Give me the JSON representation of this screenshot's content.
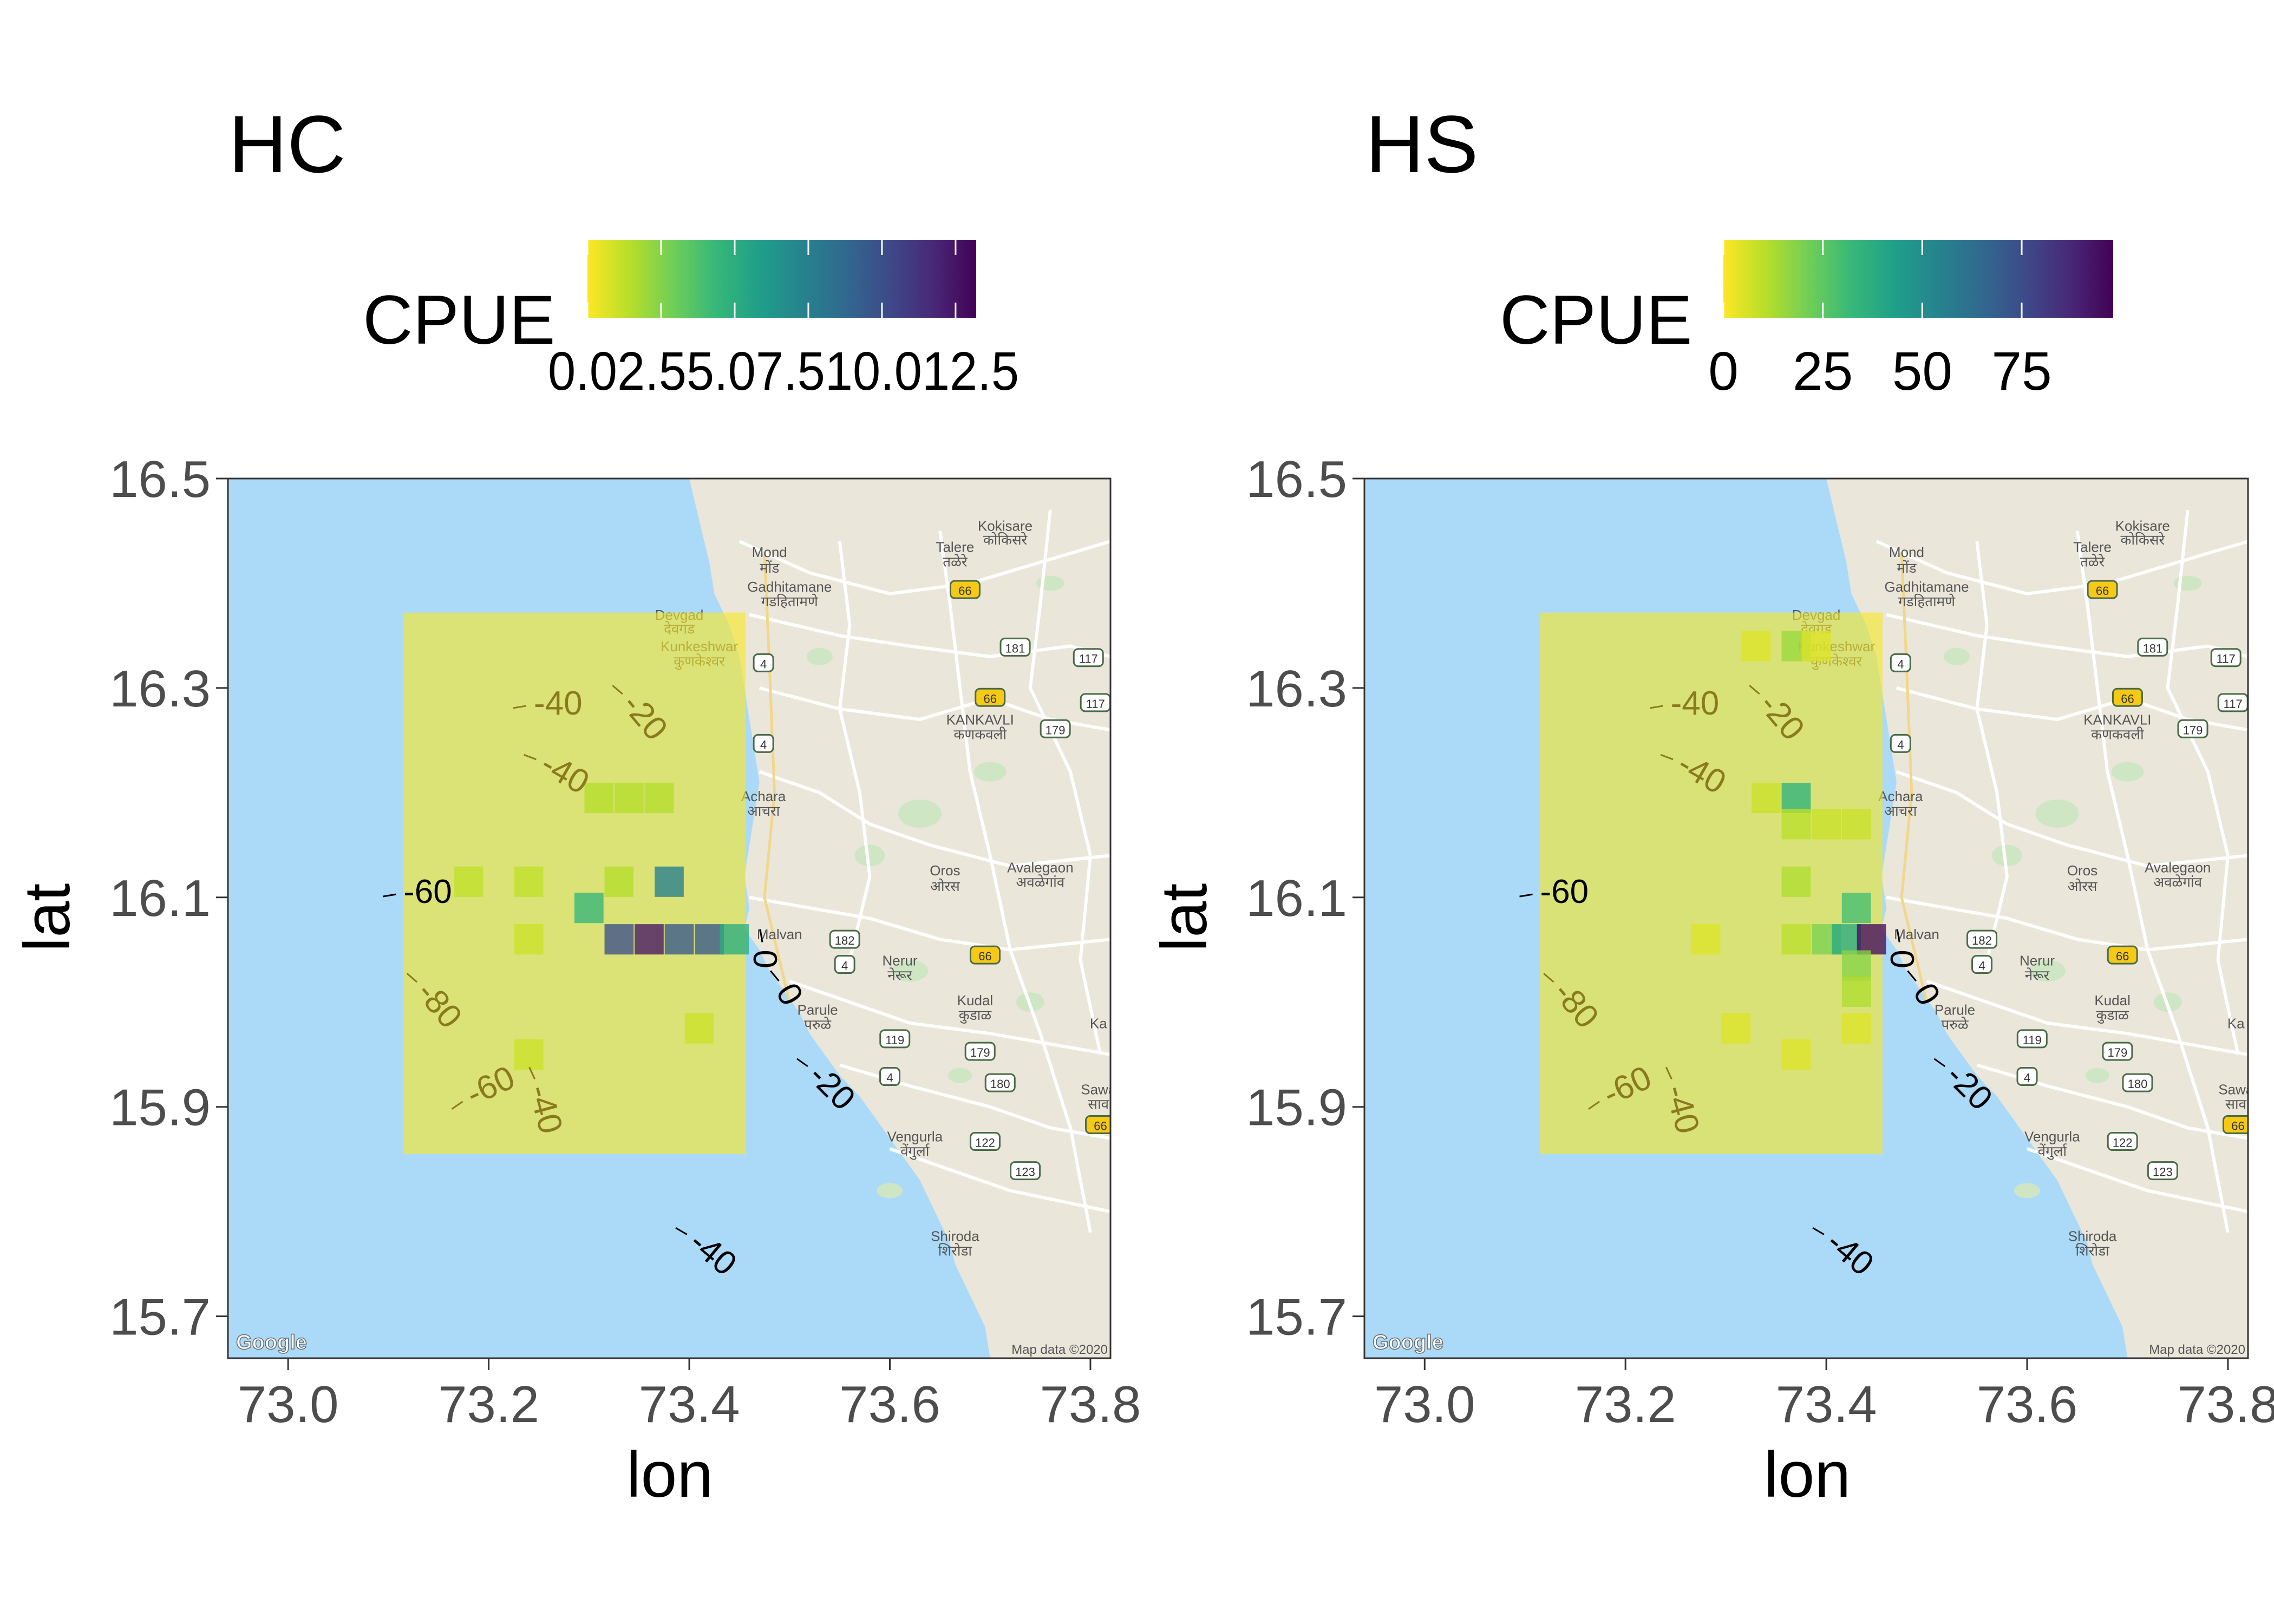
{
  "panels": [
    {
      "id": "hc",
      "title": "HC",
      "legend": {
        "title": "CPUE",
        "palette": [
          "#fde725",
          "#b5de2b",
          "#6ece58",
          "#35b779",
          "#1f9e89",
          "#26828e",
          "#31688e",
          "#3e4989",
          "#482878",
          "#440154"
        ],
        "labels": [
          "0.0",
          "2.5",
          "5.0",
          "7.5",
          "10.0",
          "12.5"
        ],
        "rendered_text": "0.02.55.07.510.012.5",
        "range": [
          0,
          13.2
        ]
      },
      "chart_data": {
        "type": "heatmap",
        "x_label": "lon",
        "y_label": "lat",
        "xlim": [
          72.94,
          73.82
        ],
        "ylim": [
          15.66,
          16.5
        ],
        "x_ticks": [
          "73.0",
          "73.2",
          "73.4",
          "73.6",
          "73.8"
        ],
        "y_ticks": [
          "15.7",
          "15.9",
          "16.1",
          "16.3",
          "16.5"
        ],
        "grid": false,
        "background_layer": "map tiles (Google)",
        "cell_size_deg": 0.029,
        "filled_region": {
          "lon": [
            73.115,
            73.456
          ],
          "lat": [
            15.855,
            16.372
          ],
          "base_value": 0.1
        },
        "cells": [
          {
            "lon": 73.31,
            "lat": 16.195,
            "v": 1.5
          },
          {
            "lon": 73.34,
            "lat": 16.195,
            "v": 1.5
          },
          {
            "lon": 73.37,
            "lat": 16.195,
            "v": 1.5
          },
          {
            "lon": 73.18,
            "lat": 16.115,
            "v": 1.2
          },
          {
            "lon": 73.24,
            "lat": 16.115,
            "v": 1.2
          },
          {
            "lon": 73.33,
            "lat": 16.115,
            "v": 1.5
          },
          {
            "lon": 73.38,
            "lat": 16.115,
            "v": 7.5
          },
          {
            "lon": 73.3,
            "lat": 16.09,
            "v": 4.5
          },
          {
            "lon": 73.24,
            "lat": 16.06,
            "v": 1.0
          },
          {
            "lon": 73.33,
            "lat": 16.06,
            "v": 10.0
          },
          {
            "lon": 73.36,
            "lat": 16.06,
            "v": 12.5
          },
          {
            "lon": 73.39,
            "lat": 16.06,
            "v": 9.5
          },
          {
            "lon": 73.42,
            "lat": 16.06,
            "v": 9.5
          },
          {
            "lon": 73.445,
            "lat": 16.06,
            "v": 5.0
          },
          {
            "lon": 73.41,
            "lat": 15.975,
            "v": 1.0
          },
          {
            "lon": 73.24,
            "lat": 15.95,
            "v": 1.0
          }
        ]
      }
    },
    {
      "id": "hs",
      "title": "HS",
      "legend": {
        "title": "CPUE",
        "palette": [
          "#fde725",
          "#b5de2b",
          "#6ece58",
          "#35b779",
          "#1f9e89",
          "#26828e",
          "#31688e",
          "#3e4989",
          "#482878",
          "#440154"
        ],
        "labels": [
          "0",
          "25",
          "50",
          "75"
        ],
        "rendered_text": "",
        "range": [
          0,
          98
        ]
      },
      "chart_data": {
        "type": "heatmap",
        "x_label": "lon",
        "y_label": "lat",
        "xlim": [
          72.94,
          73.82
        ],
        "ylim": [
          15.66,
          16.5
        ],
        "x_ticks": [
          "73.0",
          "73.2",
          "73.4",
          "73.6",
          "73.8"
        ],
        "y_ticks": [
          "15.7",
          "15.9",
          "16.1",
          "16.3",
          "16.5"
        ],
        "grid": false,
        "background_layer": "map tiles (Google)",
        "cell_size_deg": 0.029,
        "filled_region": {
          "lon": [
            73.115,
            73.456
          ],
          "lat": [
            15.855,
            16.372
          ],
          "base_value": 1
        },
        "cells": [
          {
            "lon": 73.33,
            "lat": 16.34,
            "v": 5
          },
          {
            "lon": 73.37,
            "lat": 16.34,
            "v": 15
          },
          {
            "lon": 73.39,
            "lat": 16.34,
            "v": 5
          },
          {
            "lon": 73.37,
            "lat": 16.195,
            "v": 35
          },
          {
            "lon": 73.34,
            "lat": 16.195,
            "v": 8
          },
          {
            "lon": 73.37,
            "lat": 16.17,
            "v": 10
          },
          {
            "lon": 73.4,
            "lat": 16.17,
            "v": 8
          },
          {
            "lon": 73.43,
            "lat": 16.17,
            "v": 8
          },
          {
            "lon": 73.37,
            "lat": 16.115,
            "v": 12
          },
          {
            "lon": 73.43,
            "lat": 16.09,
            "v": 30
          },
          {
            "lon": 73.37,
            "lat": 16.06,
            "v": 10
          },
          {
            "lon": 73.4,
            "lat": 16.06,
            "v": 20
          },
          {
            "lon": 73.42,
            "lat": 16.06,
            "v": 38
          },
          {
            "lon": 73.445,
            "lat": 16.06,
            "v": 95
          },
          {
            "lon": 73.43,
            "lat": 16.035,
            "v": 18
          },
          {
            "lon": 73.43,
            "lat": 16.01,
            "v": 12
          },
          {
            "lon": 73.28,
            "lat": 16.06,
            "v": 5
          },
          {
            "lon": 73.31,
            "lat": 15.975,
            "v": 5
          },
          {
            "lon": 73.37,
            "lat": 15.95,
            "v": 5
          },
          {
            "lon": 73.43,
            "lat": 15.975,
            "v": 5
          }
        ]
      }
    }
  ],
  "contour_labels": [
    {
      "text": "-40",
      "lon": 73.245,
      "lat": 16.285,
      "angle": 0,
      "on_grid": true
    },
    {
      "text": "-20",
      "lon": 73.34,
      "lat": 16.29,
      "angle": 50,
      "on_grid": true
    },
    {
      "text": "-40",
      "lon": 73.255,
      "lat": 16.23,
      "angle": 30,
      "on_grid": true
    },
    {
      "text": "-60",
      "lon": 73.115,
      "lat": 16.105,
      "angle": 0,
      "on_grid": false
    },
    {
      "text": "-80",
      "lon": 73.135,
      "lat": 16.015,
      "angle": 50,
      "on_grid": true
    },
    {
      "text": "-60",
      "lon": 73.18,
      "lat": 15.91,
      "angle": -25,
      "on_grid": true
    },
    {
      "text": "-40",
      "lon": 73.25,
      "lat": 15.92,
      "angle": 75,
      "on_grid": true
    },
    {
      "text": "0",
      "lon": 73.475,
      "lat": 16.05,
      "angle": 90,
      "on_grid": false
    },
    {
      "text": "0",
      "lon": 73.495,
      "lat": 16.015,
      "angle": 60,
      "on_grid": false
    },
    {
      "text": "-20",
      "lon": 73.525,
      "lat": 15.935,
      "angle": 45,
      "on_grid": false
    },
    {
      "text": "-40",
      "lon": 73.405,
      "lat": 15.775,
      "angle": 40,
      "on_grid": false
    }
  ],
  "map": {
    "places": [
      {
        "name": "Kokisare",
        "lon": 73.715,
        "lat": 16.45
      },
      {
        "name": "कोकिसरे",
        "lon": 73.715,
        "lat": 16.437
      },
      {
        "name": "Mond",
        "lon": 73.48,
        "lat": 16.425
      },
      {
        "name": "मोंड",
        "lon": 73.48,
        "lat": 16.41
      },
      {
        "name": "Talere",
        "lon": 73.665,
        "lat": 16.43
      },
      {
        "name": "तळेरे",
        "lon": 73.665,
        "lat": 16.416
      },
      {
        "name": "Gadhitamane",
        "lon": 73.5,
        "lat": 16.392
      },
      {
        "name": "गडहितामणे",
        "lon": 73.5,
        "lat": 16.378
      },
      {
        "name": "Devgad",
        "lon": 73.39,
        "lat": 16.365
      },
      {
        "name": "देवगड",
        "lon": 73.39,
        "lat": 16.352
      },
      {
        "name": "Kunkeshwar",
        "lon": 73.41,
        "lat": 16.335
      },
      {
        "name": "कुणकेश्वर",
        "lon": 73.41,
        "lat": 16.321
      },
      {
        "name": "KANKAVLI",
        "lon": 73.69,
        "lat": 16.265
      },
      {
        "name": "कणकवली",
        "lon": 73.69,
        "lat": 16.251
      },
      {
        "name": "Achara",
        "lon": 73.474,
        "lat": 16.192
      },
      {
        "name": "आचरा",
        "lon": 73.474,
        "lat": 16.178
      },
      {
        "name": "Oros",
        "lon": 73.655,
        "lat": 16.121
      },
      {
        "name": "ओरस",
        "lon": 73.655,
        "lat": 16.106
      },
      {
        "name": "Avalegaon",
        "lon": 73.75,
        "lat": 16.124
      },
      {
        "name": "अवळेगांव",
        "lon": 73.75,
        "lat": 16.11
      },
      {
        "name": "Malvan",
        "lon": 73.49,
        "lat": 16.06
      },
      {
        "name": "Nerur",
        "lon": 73.61,
        "lat": 16.035
      },
      {
        "name": "नेरूर",
        "lon": 73.61,
        "lat": 16.021
      },
      {
        "name": "Parule",
        "lon": 73.528,
        "lat": 15.988
      },
      {
        "name": "परुळे",
        "lon": 73.528,
        "lat": 15.974
      },
      {
        "name": "Kudal",
        "lon": 73.685,
        "lat": 15.997
      },
      {
        "name": "कुडाळ",
        "lon": 73.685,
        "lat": 15.983
      },
      {
        "name": "Vengurla",
        "lon": 73.625,
        "lat": 15.867
      },
      {
        "name": "वेंगुर्ला",
        "lon": 73.625,
        "lat": 15.853
      },
      {
        "name": "Shiroda",
        "lon": 73.665,
        "lat": 15.772
      },
      {
        "name": "शिरोडा",
        "lon": 73.665,
        "lat": 15.758
      },
      {
        "name": "Ka",
        "lon": 73.808,
        "lat": 15.975
      },
      {
        "name": "Sawa",
        "lon": 73.808,
        "lat": 15.912
      },
      {
        "name": "साव",
        "lon": 73.808,
        "lat": 15.898
      }
    ],
    "route_shields": [
      {
        "text": "66",
        "lon": 73.675,
        "lat": 16.393,
        "kind": "yellow"
      },
      {
        "text": "181",
        "lon": 73.725,
        "lat": 16.338,
        "kind": "green"
      },
      {
        "text": "117",
        "lon": 73.798,
        "lat": 16.328,
        "kind": "green"
      },
      {
        "text": "4",
        "lon": 73.474,
        "lat": 16.323,
        "kind": "green"
      },
      {
        "text": "66",
        "lon": 73.7,
        "lat": 16.29,
        "kind": "yellow"
      },
      {
        "text": "117",
        "lon": 73.805,
        "lat": 16.285,
        "kind": "green"
      },
      {
        "text": "179",
        "lon": 73.765,
        "lat": 16.26,
        "kind": "green"
      },
      {
        "text": "4",
        "lon": 73.474,
        "lat": 16.246,
        "kind": "green"
      },
      {
        "text": "182",
        "lon": 73.555,
        "lat": 16.059,
        "kind": "green"
      },
      {
        "text": "66",
        "lon": 73.695,
        "lat": 16.044,
        "kind": "yellow"
      },
      {
        "text": "4",
        "lon": 73.555,
        "lat": 16.035,
        "kind": "green"
      },
      {
        "text": "119",
        "lon": 73.605,
        "lat": 15.964,
        "kind": "green"
      },
      {
        "text": "179",
        "lon": 73.69,
        "lat": 15.952,
        "kind": "green"
      },
      {
        "text": "4",
        "lon": 73.6,
        "lat": 15.928,
        "kind": "green"
      },
      {
        "text": "180",
        "lon": 73.71,
        "lat": 15.922,
        "kind": "green"
      },
      {
        "text": "66",
        "lon": 73.81,
        "lat": 15.882,
        "kind": "yellow"
      },
      {
        "text": "122",
        "lon": 73.695,
        "lat": 15.866,
        "kind": "green"
      },
      {
        "text": "123",
        "lon": 73.735,
        "lat": 15.838,
        "kind": "green"
      }
    ],
    "attribution": "Map data ©2020",
    "logo": "Google",
    "colors": {
      "sea": "#abdaf9",
      "land": "#eae6da",
      "road": "#ffffff",
      "green": "#c8e6c0",
      "text": "#555555"
    }
  }
}
